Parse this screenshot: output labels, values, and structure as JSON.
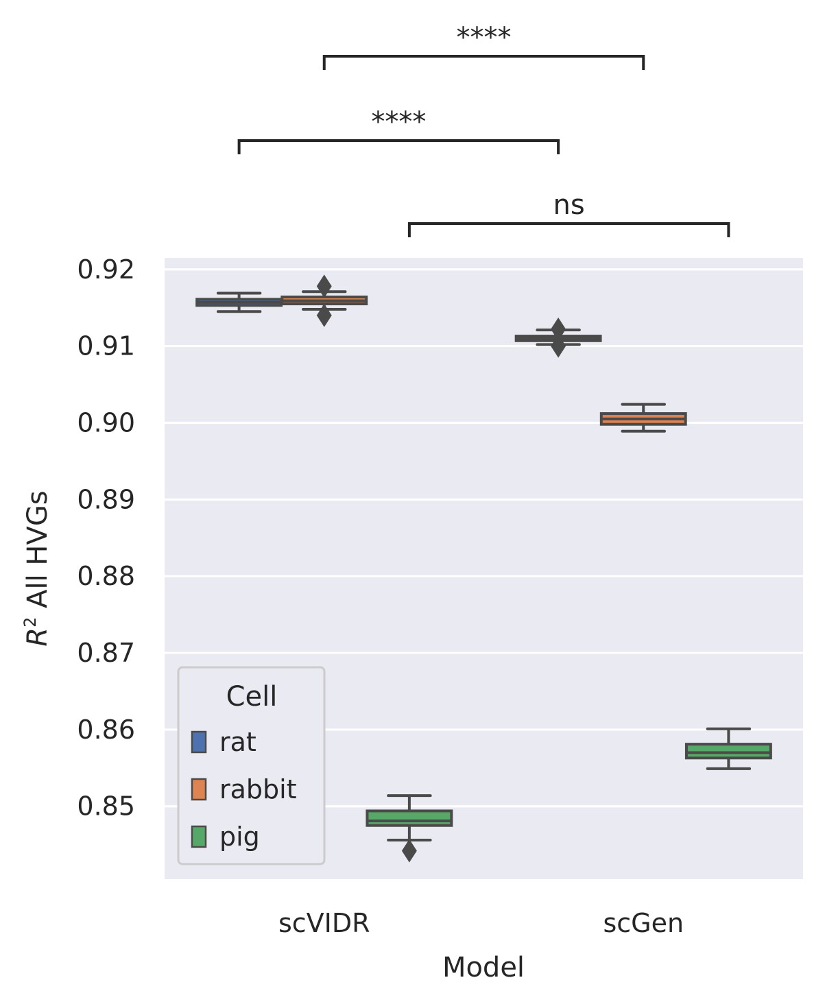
{
  "chart_data": {
    "type": "box",
    "xlabel": "Model",
    "ylabel": "R² All HVGs",
    "ylabel_base": "R",
    "ylabel_sup": "2",
    "ylabel_rest": " All HVGs",
    "categories": [
      "scVIDR",
      "scGen"
    ],
    "hue_title": "Cell",
    "ylim": [
      0.8405,
      0.9215
    ],
    "yticks": [
      0.85,
      0.86,
      0.87,
      0.88,
      0.89,
      0.9,
      0.91,
      0.92
    ],
    "ytick_labels": [
      "0.85",
      "0.86",
      "0.87",
      "0.88",
      "0.89",
      "0.90",
      "0.91",
      "0.92"
    ],
    "grid": true,
    "legend_position": "lower-left",
    "series": [
      {
        "name": "rat",
        "color": "#4c72b0",
        "boxes": [
          {
            "category": "scVIDR",
            "whisker_low": 0.9145,
            "q1": 0.9153,
            "median": 0.9157,
            "q3": 0.9161,
            "whisker_high": 0.9169,
            "outliers": []
          },
          {
            "category": "scGen",
            "whisker_low": 0.9102,
            "q1": 0.9107,
            "median": 0.911,
            "q3": 0.9113,
            "whisker_high": 0.9121,
            "outliers": [
              0.91,
              0.9122
            ]
          }
        ]
      },
      {
        "name": "rabbit",
        "color": "#dd8452",
        "boxes": [
          {
            "category": "scVIDR",
            "whisker_low": 0.9148,
            "q1": 0.9155,
            "median": 0.9159,
            "q3": 0.9164,
            "whisker_high": 0.9171,
            "outliers": [
              0.914,
              0.9178
            ]
          },
          {
            "category": "scGen",
            "whisker_low": 0.8989,
            "q1": 0.8998,
            "median": 0.9005,
            "q3": 0.9012,
            "whisker_high": 0.9024,
            "outliers": []
          }
        ]
      },
      {
        "name": "pig",
        "color": "#55a868",
        "boxes": [
          {
            "category": "scVIDR",
            "whisker_low": 0.8456,
            "q1": 0.8475,
            "median": 0.8481,
            "q3": 0.8494,
            "whisker_high": 0.8514,
            "outliers": [
              0.8442
            ]
          },
          {
            "category": "scGen",
            "whisker_low": 0.8549,
            "q1": 0.8563,
            "median": 0.857,
            "q3": 0.8581,
            "whisker_high": 0.8601,
            "outliers": []
          }
        ]
      }
    ],
    "annotations": [
      {
        "label": "ns",
        "from": {
          "category": "scVIDR",
          "series": "pig"
        },
        "to": {
          "category": "scGen",
          "series": "pig"
        },
        "level": 0
      },
      {
        "label": "****",
        "from": {
          "category": "scVIDR",
          "series": "rat"
        },
        "to": {
          "category": "scGen",
          "series": "rat"
        },
        "level": 1
      },
      {
        "label": "****",
        "from": {
          "category": "scVIDR",
          "series": "rabbit"
        },
        "to": {
          "category": "scGen",
          "series": "rabbit"
        },
        "level": 2
      }
    ]
  }
}
